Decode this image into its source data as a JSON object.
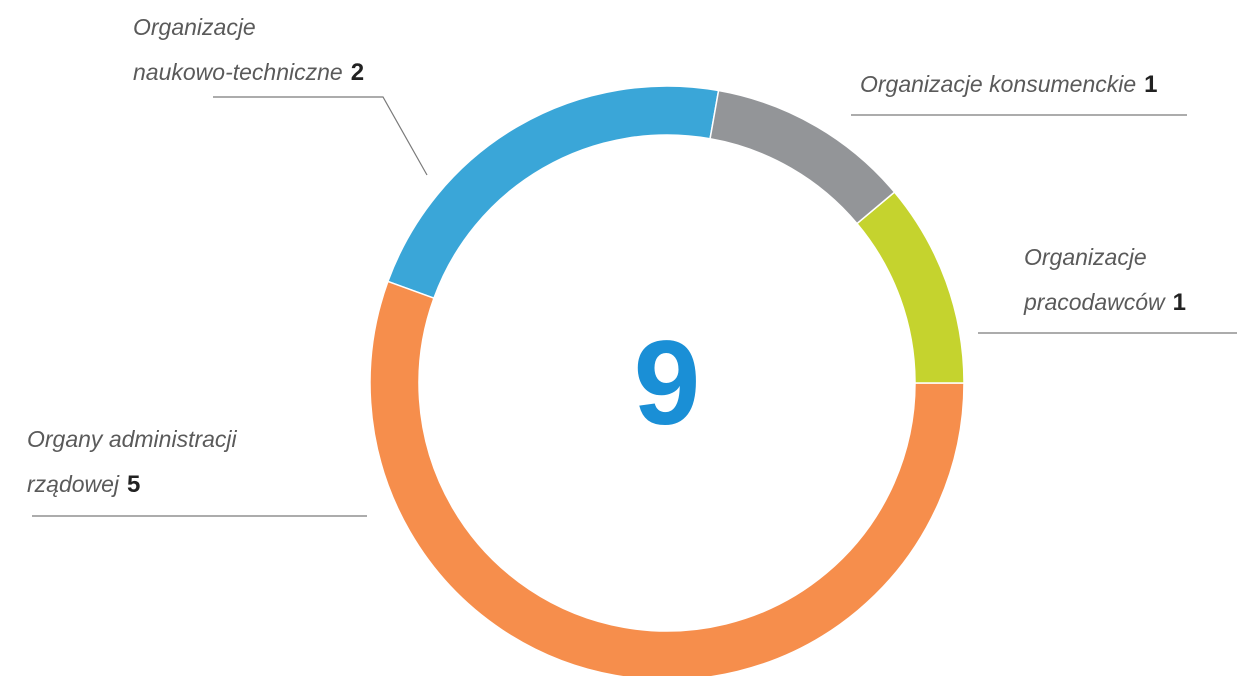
{
  "chart_data": {
    "type": "donut",
    "categories": [
      "Organizacje konsumenckie",
      "Organizacje\npracodawców",
      "Organy administracji\nrządowej",
      "Organizacje\nnaukowo-techniczne"
    ],
    "values": [
      1,
      1,
      5,
      2
    ],
    "colors": [
      "#939598",
      "#c5d32e",
      "#f68e4c",
      "#3aa6d8"
    ],
    "total": 9
  }
}
